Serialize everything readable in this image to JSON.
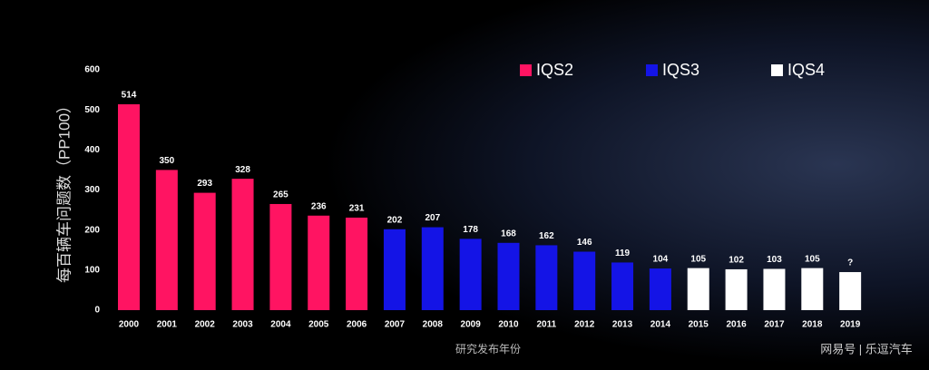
{
  "chart_data": {
    "type": "bar",
    "y_label": "每百辆车问题数（PP100）",
    "x_label": "研究发布年份",
    "watermark": "网易号 | 乐逗汽车",
    "categories": [
      "2000",
      "2001",
      "2002",
      "2003",
      "2004",
      "2005",
      "2006",
      "2007",
      "2008",
      "2009",
      "2010",
      "2011",
      "2012",
      "2013",
      "2014",
      "2015",
      "2016",
      "2017",
      "2018",
      "2019"
    ],
    "series": [
      {
        "name": "IQS2",
        "color": "#ff1462",
        "values": [
          514,
          350,
          293,
          328,
          265,
          236,
          231,
          null,
          null,
          null,
          null,
          null,
          null,
          null,
          null,
          null,
          null,
          null,
          null,
          null
        ]
      },
      {
        "name": "IQS3",
        "color": "#1414e6",
        "values": [
          null,
          null,
          null,
          null,
          null,
          null,
          null,
          202,
          207,
          178,
          168,
          162,
          146,
          119,
          104,
          null,
          null,
          null,
          null,
          null
        ]
      },
      {
        "name": "IQS4",
        "color": "#ffffff",
        "values": [
          null,
          null,
          null,
          null,
          null,
          null,
          null,
          null,
          null,
          null,
          null,
          null,
          null,
          null,
          null,
          105,
          102,
          103,
          105,
          95
        ],
        "value_labels": [
          null,
          null,
          null,
          null,
          null,
          null,
          null,
          null,
          null,
          null,
          null,
          null,
          null,
          null,
          null,
          null,
          null,
          null,
          null,
          "?"
        ]
      }
    ],
    "ylim": [
      0,
      600
    ],
    "yticks": [
      0,
      100,
      200,
      300,
      400,
      500,
      600
    ],
    "grid": false,
    "legend": "top-right"
  }
}
